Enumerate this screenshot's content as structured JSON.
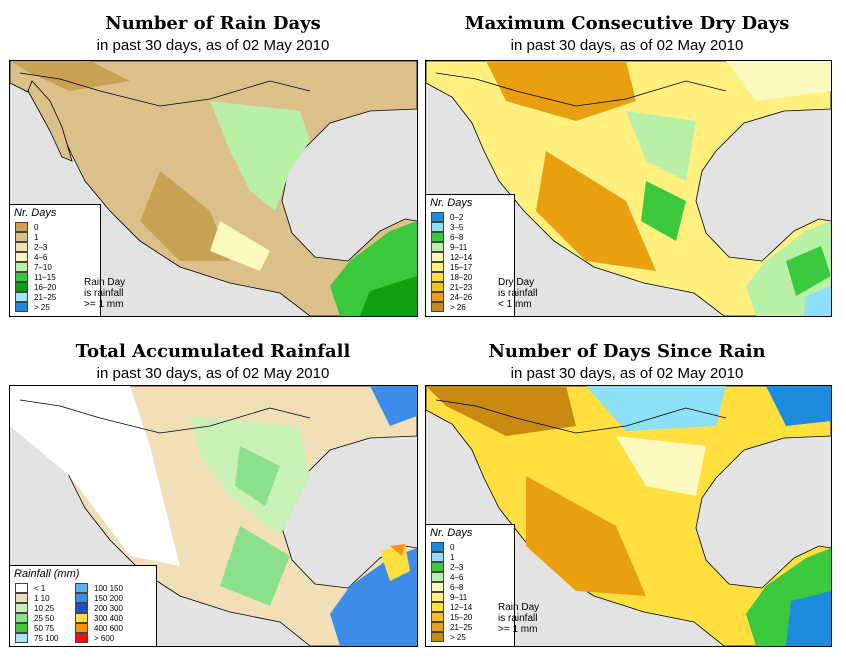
{
  "panels": {
    "rain_days": {
      "title": "Number of Rain Days",
      "subtitle": "in past 30 days, as of  02 May 2010",
      "legend_title": "Nr. Days",
      "legend": [
        {
          "label": "0",
          "color": "#c8a252"
        },
        {
          "label": "1",
          "color": "#dcc08a"
        },
        {
          "label": "2–3",
          "color": "#f2dfb8"
        },
        {
          "label": "4–6",
          "color": "#fafac0"
        },
        {
          "label": "7–10",
          "color": "#b8f0a8"
        },
        {
          "label": "11–15",
          "color": "#3cc83c"
        },
        {
          "label": "16–20",
          "color": "#10a010"
        },
        {
          "label": "21–25",
          "color": "#a0e8f8"
        },
        {
          "label": "> 25",
          "color": "#1e8cdc"
        }
      ],
      "note": [
        "Rain Day",
        "is rainfall",
        ">= 1 mm"
      ]
    },
    "dry_days": {
      "title": "Maximum Consecutive Dry Days",
      "subtitle": "in past 30 days, as of  02 May 2010",
      "legend_title": "Nr. Days",
      "legend": [
        {
          "label": "0–2",
          "color": "#1e8cdc"
        },
        {
          "label": "3–5",
          "color": "#8ce0f8"
        },
        {
          "label": "6–8",
          "color": "#3cc83c"
        },
        {
          "label": "9–11",
          "color": "#b8f0a8"
        },
        {
          "label": "12–14",
          "color": "#fafac0"
        },
        {
          "label": "15–17",
          "color": "#fff080"
        },
        {
          "label": "18–20",
          "color": "#ffe040"
        },
        {
          "label": "21–23",
          "color": "#f8c020"
        },
        {
          "label": "24–26",
          "color": "#e8a010"
        },
        {
          "label": "> 26",
          "color": "#c88a10"
        }
      ],
      "note": [
        "Dry Day",
        "is rainfall",
        "< 1 mm"
      ]
    },
    "total_rain": {
      "title": "Total Accumulated Rainfall",
      "subtitle": "in past 30 days, as of  02 May 2010",
      "legend_title": "Rainfall (mm)",
      "legend_left": [
        {
          "label": "< 1",
          "color": "#ffffff"
        },
        {
          "label": "1   10",
          "color": "#f2dfb8"
        },
        {
          "label": "10   25",
          "color": "#c8f0b8"
        },
        {
          "label": "25   50",
          "color": "#8ce08c"
        },
        {
          "label": "50   75",
          "color": "#3cc83c"
        },
        {
          "label": "75   100",
          "color": "#a0e8f8"
        }
      ],
      "legend_right": [
        {
          "label": "100   150",
          "color": "#60b0f0"
        },
        {
          "label": "150   200",
          "color": "#3c8ce8"
        },
        {
          "label": "200   300",
          "color": "#1e50c8"
        },
        {
          "label": "300   400",
          "color": "#ffe040"
        },
        {
          "label": "400   600",
          "color": "#ff9010"
        },
        {
          "label": "> 600",
          "color": "#f01010"
        }
      ]
    },
    "since_rain": {
      "title": "Number of Days Since Rain",
      "subtitle": "in past 30 days, as of  02 May 2010",
      "legend_title": "Nr. Days",
      "legend": [
        {
          "label": "0",
          "color": "#1e8cdc"
        },
        {
          "label": "1",
          "color": "#8ce0f8"
        },
        {
          "label": "2–3",
          "color": "#3cc83c"
        },
        {
          "label": "4–6",
          "color": "#b8f0a8"
        },
        {
          "label": "6–8",
          "color": "#fafac0"
        },
        {
          "label": "9–11",
          "color": "#fff080"
        },
        {
          "label": "12–14",
          "color": "#ffe040"
        },
        {
          "label": "15–20",
          "color": "#f8c020"
        },
        {
          "label": "21–25",
          "color": "#e8a010"
        },
        {
          "label": "> 25",
          "color": "#c88a10"
        }
      ],
      "note": [
        "Rain Day",
        "is rainfall",
        ">= 1 mm"
      ]
    }
  }
}
